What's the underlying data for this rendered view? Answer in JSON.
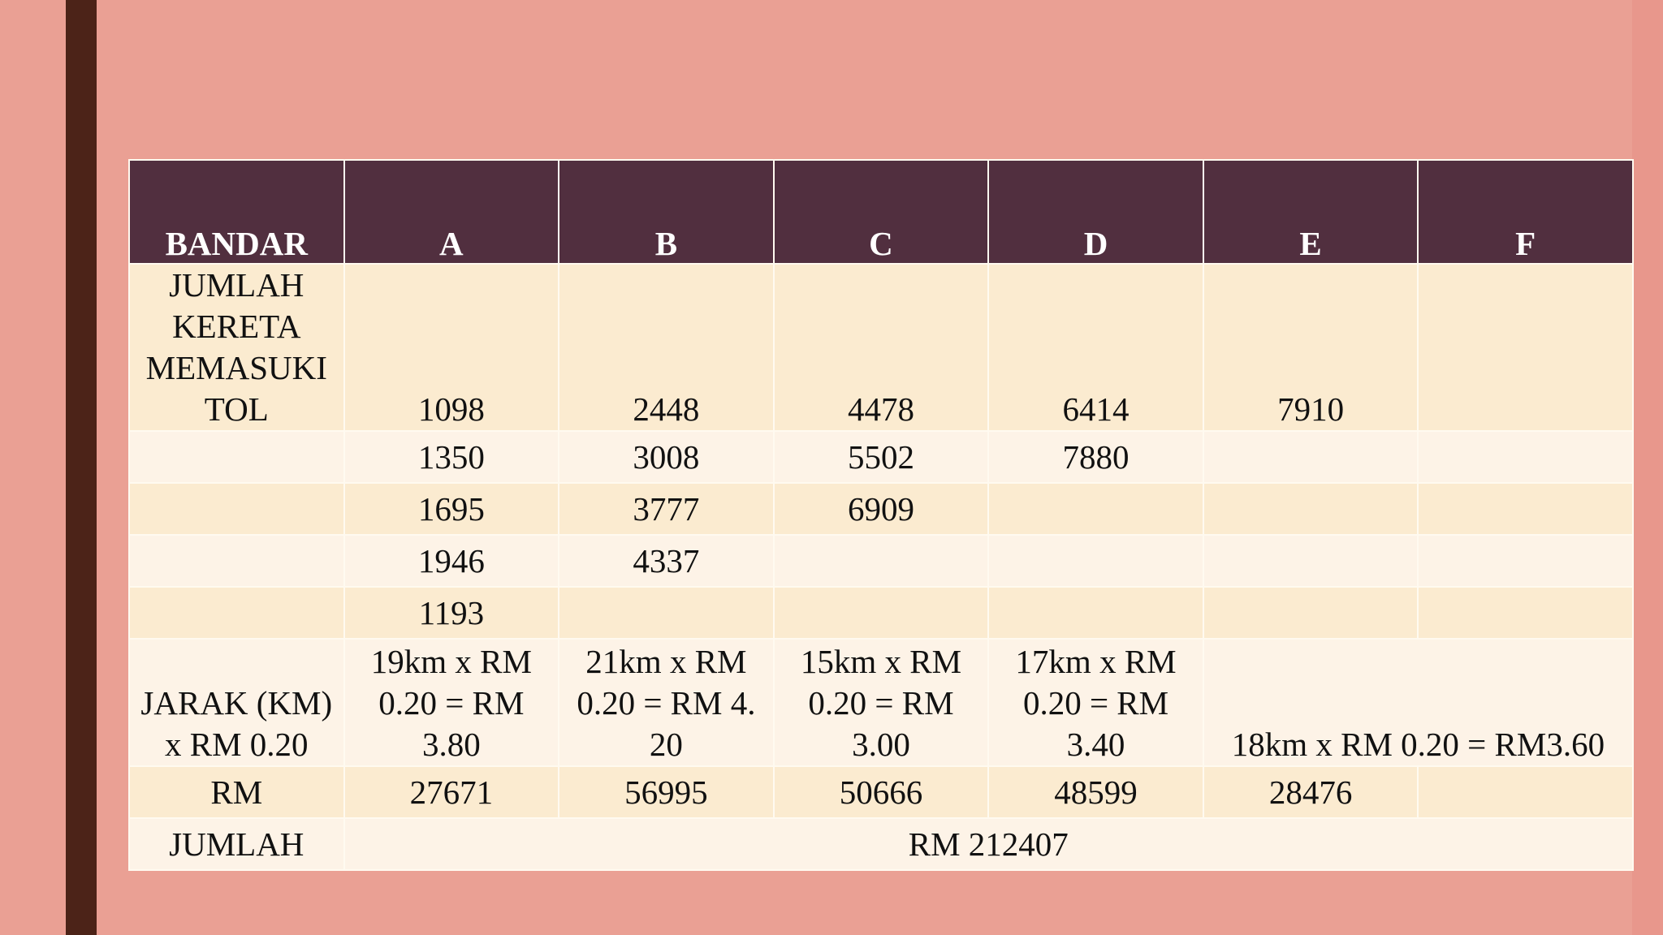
{
  "table": {
    "headers": [
      "BANDAR",
      "A",
      "B",
      "C",
      "D",
      "E",
      "F"
    ],
    "rows": [
      {
        "label": "JUMLAH KERETA MEMASUKI TOL",
        "cells": [
          "1098",
          "2448",
          "4478",
          "6414",
          "7910",
          ""
        ]
      },
      {
        "label": "",
        "cells": [
          "1350",
          "3008",
          "5502",
          "7880",
          "",
          ""
        ]
      },
      {
        "label": "",
        "cells": [
          "1695",
          "3777",
          "6909",
          "",
          "",
          ""
        ]
      },
      {
        "label": "",
        "cells": [
          "1946",
          "4337",
          "",
          "",
          "",
          ""
        ]
      },
      {
        "label": "",
        "cells": [
          "1193",
          "",
          "",
          "",
          "",
          ""
        ]
      }
    ],
    "jarak": {
      "label": "JARAK (KM) x RM 0.20",
      "cells": [
        "19km x RM 0.20 = RM 3.80",
        "21km x RM 0.20 = RM 4. 20",
        "15km x RM 0.20 = RM 3.00",
        "17km x RM 0.20 = RM 3.40"
      ],
      "merged": "18km x RM 0.20 = RM3.60"
    },
    "rm": {
      "label": "RM",
      "cells": [
        "27671",
        "56995",
        "50666",
        "48599",
        "28476",
        ""
      ]
    },
    "total": {
      "label": "JUMLAH",
      "value": "RM 212407"
    }
  },
  "colors": {
    "background": "#eaa094",
    "left_bar": "#4c2318",
    "header": "#512f3f",
    "row_band_a": "#fbebd0",
    "row_band_b": "#fdf3e7"
  }
}
